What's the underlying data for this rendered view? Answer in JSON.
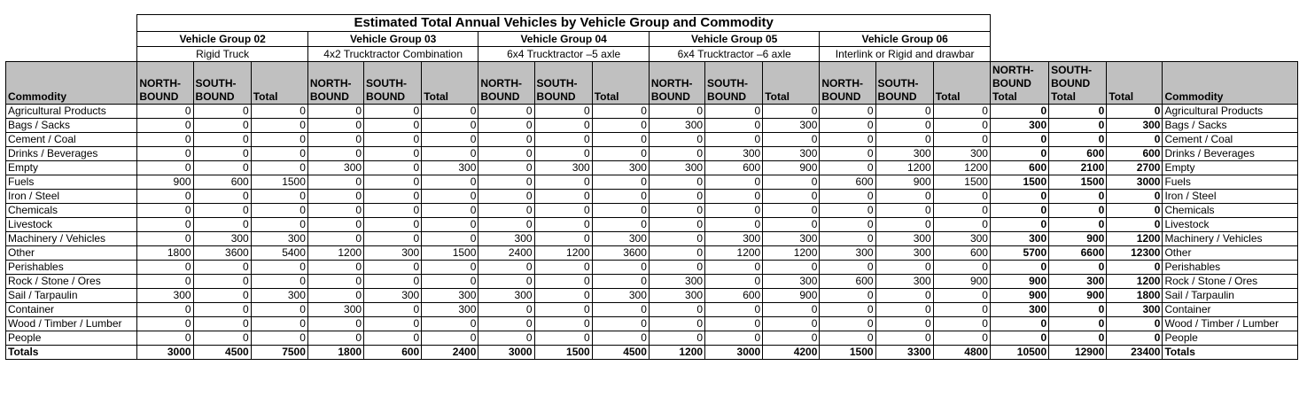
{
  "title": "Estimated Total Annual Vehicles by Vehicle Group and Commodity",
  "groups": [
    {
      "name": "Vehicle Group 02",
      "desc": "Rigid Truck"
    },
    {
      "name": "Vehicle Group 03",
      "desc": "4x2 Trucktractor Combination"
    },
    {
      "name": "Vehicle Group 04",
      "desc": "6x4 Trucktractor –5 axle"
    },
    {
      "name": "Vehicle Group 05",
      "desc": "6x4 Trucktractor –6 axle"
    },
    {
      "name": "Vehicle Group 06",
      "desc": "Interlink or Rigid and drawbar"
    }
  ],
  "headers": {
    "commodity": "Commodity",
    "north": "NORTH-BOUND",
    "south": "SOUTH-BOUND",
    "total": "Total",
    "north_total": "NORTH-BOUND Total",
    "south_total": "SOUTH-BOUND Total"
  },
  "rows": [
    {
      "label": "Agricultural Products",
      "values": [
        0,
        0,
        0,
        0,
        0,
        0,
        0,
        0,
        0,
        0,
        0,
        0,
        0,
        0,
        0,
        0,
        0,
        0
      ]
    },
    {
      "label": "Bags / Sacks",
      "values": [
        0,
        0,
        0,
        0,
        0,
        0,
        0,
        0,
        0,
        300,
        0,
        300,
        0,
        0,
        0,
        300,
        0,
        300
      ]
    },
    {
      "label": "Cement / Coal",
      "values": [
        0,
        0,
        0,
        0,
        0,
        0,
        0,
        0,
        0,
        0,
        0,
        0,
        0,
        0,
        0,
        0,
        0,
        0
      ]
    },
    {
      "label": "Drinks / Beverages",
      "values": [
        0,
        0,
        0,
        0,
        0,
        0,
        0,
        0,
        0,
        0,
        300,
        300,
        0,
        300,
        300,
        0,
        600,
        600
      ]
    },
    {
      "label": "Empty",
      "values": [
        0,
        0,
        0,
        300,
        0,
        300,
        0,
        300,
        300,
        300,
        600,
        900,
        0,
        1200,
        1200,
        600,
        2100,
        2700
      ]
    },
    {
      "label": "Fuels",
      "values": [
        900,
        600,
        1500,
        0,
        0,
        0,
        0,
        0,
        0,
        0,
        0,
        0,
        600,
        900,
        1500,
        1500,
        1500,
        3000
      ]
    },
    {
      "label": "Iron / Steel",
      "values": [
        0,
        0,
        0,
        0,
        0,
        0,
        0,
        0,
        0,
        0,
        0,
        0,
        0,
        0,
        0,
        0,
        0,
        0
      ]
    },
    {
      "label": "Chemicals",
      "values": [
        0,
        0,
        0,
        0,
        0,
        0,
        0,
        0,
        0,
        0,
        0,
        0,
        0,
        0,
        0,
        0,
        0,
        0
      ]
    },
    {
      "label": "Livestock",
      "values": [
        0,
        0,
        0,
        0,
        0,
        0,
        0,
        0,
        0,
        0,
        0,
        0,
        0,
        0,
        0,
        0,
        0,
        0
      ]
    },
    {
      "label": "Machinery / Vehicles",
      "values": [
        0,
        300,
        300,
        0,
        0,
        0,
        300,
        0,
        300,
        0,
        300,
        300,
        0,
        300,
        300,
        300,
        900,
        1200
      ]
    },
    {
      "label": "Other",
      "values": [
        1800,
        3600,
        5400,
        1200,
        300,
        1500,
        2400,
        1200,
        3600,
        0,
        1200,
        1200,
        300,
        300,
        600,
        5700,
        6600,
        12300
      ]
    },
    {
      "label": "Perishables",
      "values": [
        0,
        0,
        0,
        0,
        0,
        0,
        0,
        0,
        0,
        0,
        0,
        0,
        0,
        0,
        0,
        0,
        0,
        0
      ]
    },
    {
      "label": "Rock / Stone / Ores",
      "values": [
        0,
        0,
        0,
        0,
        0,
        0,
        0,
        0,
        0,
        300,
        0,
        300,
        600,
        300,
        900,
        900,
        300,
        1200
      ]
    },
    {
      "label": "Sail / Tarpaulin",
      "values": [
        300,
        0,
        300,
        0,
        300,
        300,
        300,
        0,
        300,
        300,
        600,
        900,
        0,
        0,
        0,
        900,
        900,
        1800
      ]
    },
    {
      "label": "Container",
      "values": [
        0,
        0,
        0,
        300,
        0,
        300,
        0,
        0,
        0,
        0,
        0,
        0,
        0,
        0,
        0,
        300,
        0,
        300
      ]
    },
    {
      "label": "Wood / Timber / Lumber",
      "values": [
        0,
        0,
        0,
        0,
        0,
        0,
        0,
        0,
        0,
        0,
        0,
        0,
        0,
        0,
        0,
        0,
        0,
        0
      ]
    },
    {
      "label": "People",
      "values": [
        0,
        0,
        0,
        0,
        0,
        0,
        0,
        0,
        0,
        0,
        0,
        0,
        0,
        0,
        0,
        0,
        0,
        0
      ]
    }
  ],
  "totals": {
    "label": "Totals",
    "values": [
      3000,
      4500,
      7500,
      1800,
      600,
      2400,
      3000,
      1500,
      4500,
      1200,
      3000,
      4200,
      1500,
      3300,
      4800,
      10500,
      12900,
      23400
    ]
  }
}
